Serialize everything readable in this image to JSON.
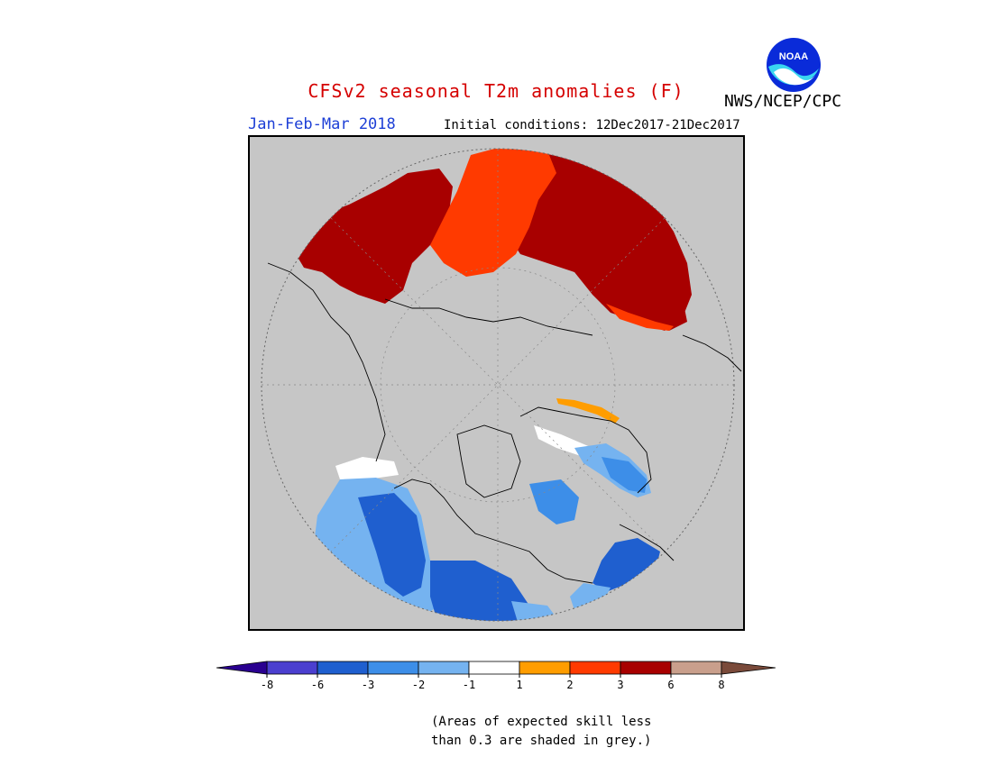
{
  "header": {
    "title": "CFSv2 seasonal T2m anomalies (F)",
    "agency": "NWS/NCEP/CPC",
    "logo_text": "NOAA",
    "season": "Jan-Feb-Mar 2018",
    "initial_conditions": "Initial conditions: 12Dec2017-21Dec2017"
  },
  "map": {
    "projection": "north-polar-stereographic",
    "background_grey": "#c6c6c6"
  },
  "legend": {
    "levels": [
      {
        "label": "-8",
        "color": "#3a00b4"
      },
      {
        "label": "-6",
        "color": "#4b3fcf"
      },
      {
        "label": "-3",
        "color": "#1f5fcf"
      },
      {
        "label": "-2",
        "color": "#3d8ee8"
      },
      {
        "label": "-1",
        "color": "#75b3f0"
      },
      {
        "label": "1",
        "color": "#ffffff"
      },
      {
        "label": "2",
        "color": "#ff9d00"
      },
      {
        "label": "3",
        "color": "#ff3a00"
      },
      {
        "label": "6",
        "color": "#a80000"
      },
      {
        "label": "8",
        "color": "#c99f8c"
      }
    ],
    "end_low_color": "#2a0090",
    "end_high_color": "#7a4a3a"
  },
  "note": {
    "line1": "(Areas of expected skill less",
    "line2": "than 0.3 are shaded in grey.)"
  }
}
